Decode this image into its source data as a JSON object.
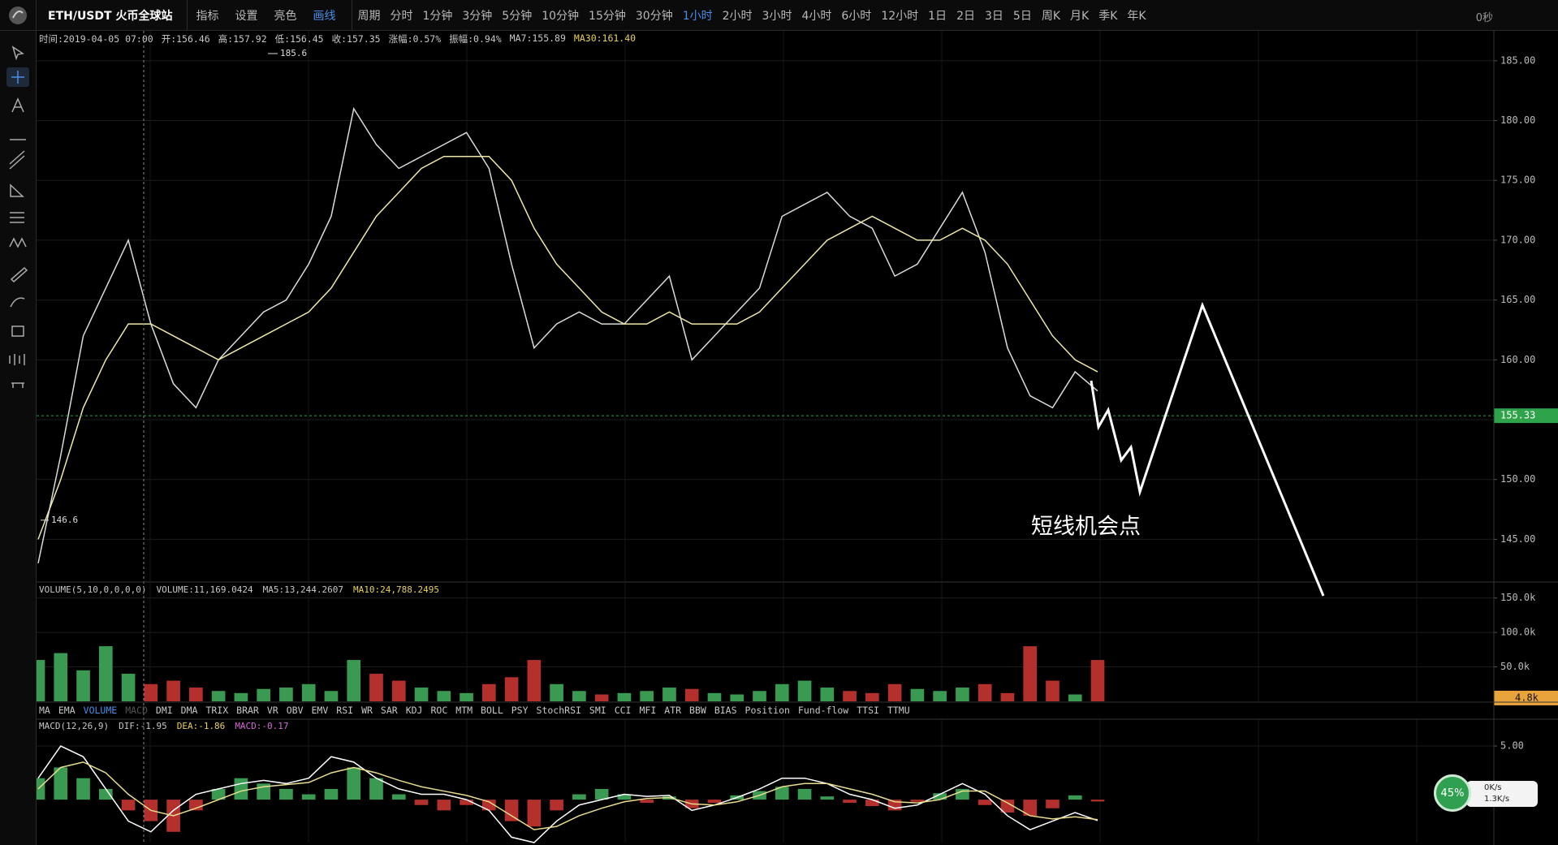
{
  "toolbar": {
    "symbol": "ETH/USDT 火币全球站",
    "tools": [
      "指标",
      "设置",
      "亮色",
      "画线"
    ],
    "active_tool": "画线",
    "period_label": "周期",
    "periods": [
      "分时",
      "1分钟",
      "3分钟",
      "5分钟",
      "10分钟",
      "15分钟",
      "30分钟",
      "1小时",
      "2小时",
      "3小时",
      "4小时",
      "6小时",
      "12小时",
      "1日",
      "2日",
      "3日",
      "5日",
      "周K",
      "月K",
      "季K",
      "年K"
    ],
    "active_period": "1小时",
    "speed": "0秒"
  },
  "info_bar": [
    {
      "text": "时间:2019-04-05 07:00",
      "color": "#c8c8c8"
    },
    {
      "text": "开:156.46",
      "color": "#c8c8c8"
    },
    {
      "text": "高:157.92",
      "color": "#c8c8c8"
    },
    {
      "text": "低:156.45",
      "color": "#c8c8c8"
    },
    {
      "text": "收:157.35",
      "color": "#c8c8c8"
    },
    {
      "text": "涨幅:0.57%",
      "color": "#c8c8c8"
    },
    {
      "text": "振幅:0.94%",
      "color": "#c8c8c8"
    },
    {
      "text": "MA7:155.89",
      "color": "#c8c8c8"
    },
    {
      "text": "MA30:161.40",
      "color": "#e8d25a"
    }
  ],
  "indicator_tabs": [
    "MA",
    "EMA",
    "VOLUME",
    "MACD",
    "DMI",
    "DMA",
    "TRIX",
    "BRAR",
    "VR",
    "OBV",
    "EMV",
    "RSI",
    "WR",
    "SAR",
    "KDJ",
    "ROC",
    "MTM",
    "BOLL",
    "PSY",
    "StochRSI",
    "SMI",
    "CCI",
    "MFI",
    "ATR",
    "BBW",
    "BIAS",
    "Position",
    "Fund-flow",
    "TTSI",
    "TTMU"
  ],
  "active_indicator": "VOLUME",
  "dimmed_indicator": "MACD",
  "widget": {
    "percent": "45%",
    "up": "0K/s",
    "down": "1.3K/s"
  },
  "chart_data": [
    {
      "type": "line",
      "ylim": [
        141.5,
        187.5
      ],
      "yticks": [
        {
          "value": 145,
          "label": "145.00"
        },
        {
          "value": 150,
          "label": "150.00"
        },
        {
          "value": 155,
          "label": "155.00"
        },
        {
          "value": 160,
          "label": "160.00"
        },
        {
          "value": 165,
          "label": "165.00"
        },
        {
          "value": 170,
          "label": "170.00"
        },
        {
          "value": 175,
          "label": "175.00"
        },
        {
          "value": 180,
          "label": "180.00"
        },
        {
          "value": 185,
          "label": "185.00"
        }
      ],
      "grid": true,
      "series": [
        {
          "color": "#d9dcd6",
          "values": [
            143,
            152,
            162,
            166,
            170,
            163,
            158,
            156,
            160,
            162,
            164,
            165,
            168,
            172,
            181,
            178,
            176,
            177,
            178,
            179,
            176,
            168,
            161,
            163,
            164,
            163,
            163,
            165,
            167,
            160,
            162,
            164,
            166,
            172,
            173,
            174,
            172,
            171,
            167,
            168,
            171,
            174,
            169,
            161,
            157,
            156,
            159,
            157.4
          ]
        },
        {
          "color": "#eee8a8",
          "values": [
            145,
            150,
            156,
            160,
            163,
            163,
            162,
            161,
            160,
            161,
            162,
            163,
            164,
            166,
            169,
            172,
            174,
            176,
            177,
            177,
            177,
            175,
            171,
            168,
            166,
            164,
            163,
            163,
            164,
            163,
            163,
            163,
            164,
            166,
            168,
            170,
            171,
            172,
            171,
            170,
            170,
            171,
            170,
            168,
            165,
            162,
            160,
            159
          ]
        }
      ],
      "high_marker": 185.6,
      "low_marker": 146.6,
      "last_price": 155.33,
      "last_price_color": "#2fa34a",
      "annotation": "短线机会点"
    },
    {
      "type": "bar",
      "ylim": [
        0,
        172000
      ],
      "yticks": [
        {
          "value": 50000,
          "label": "50.0k"
        },
        {
          "value": 100000,
          "label": "100.0k"
        },
        {
          "value": 150000,
          "label": "150.0k"
        }
      ],
      "grid": true,
      "values": [
        60000,
        70000,
        45000,
        80000,
        40000,
        25000,
        30000,
        20000,
        15000,
        12000,
        18000,
        20000,
        25000,
        15000,
        60000,
        40000,
        30000,
        20000,
        15000,
        12000,
        25000,
        35000,
        60000,
        25000,
        15000,
        10000,
        12000,
        15000,
        20000,
        18000,
        12000,
        10000,
        15000,
        25000,
        30000,
        20000,
        15000,
        12000,
        25000,
        18000,
        15000,
        20000,
        25000,
        12000,
        80000,
        30000,
        10000,
        60000
      ],
      "up_color": "#3a9a52",
      "down_color": "#b3302c",
      "last_value": {
        "value": 4800,
        "label": "4.8k"
      },
      "last_value_color": "#e8a33a",
      "header": [
        {
          "text": "VOLUME(5,10,0,0,0,0)",
          "color": "#c8c8c8"
        },
        {
          "text": "VOLUME:11,169.0424",
          "color": "#c8c8c8"
        },
        {
          "text": "MA5:13,244.2607",
          "color": "#c8c8c8"
        },
        {
          "text": "MA10:24,788.2495",
          "color": "#e8d25a"
        }
      ]
    },
    {
      "type": "combo",
      "ylim": [
        -4,
        7.5
      ],
      "yticks": [
        {
          "value": 5,
          "label": "5.00"
        }
      ],
      "grid": true,
      "values": [
        2,
        3,
        2,
        1,
        -1,
        -2,
        -3,
        -1,
        1,
        2,
        1.5,
        1,
        0.5,
        1,
        3,
        2,
        0.5,
        -0.5,
        -1,
        -0.5,
        -1,
        -2,
        -2.5,
        -1,
        0.5,
        1,
        0.5,
        -0.3,
        0.3,
        -0.8,
        -0.3,
        0.4,
        0.8,
        1.2,
        1,
        0.3,
        -0.3,
        -0.6,
        -1,
        -0.2,
        0.6,
        1,
        -0.5,
        -1.2,
        -1.5,
        -0.8,
        0.4,
        -0.17
      ],
      "up_color": "#3a9a52",
      "down_color": "#b3302c",
      "series": [
        {
          "color": "#ffffff",
          "values": [
            2,
            5,
            4,
            1,
            -2,
            -3,
            -1,
            0.5,
            1,
            1.5,
            1.8,
            1.5,
            2,
            4,
            3.5,
            2,
            1,
            0.5,
            0.5,
            0,
            -1,
            -3.5,
            -4,
            -2,
            -0.5,
            0,
            0.5,
            0.3,
            0.4,
            -1,
            -0.5,
            0.2,
            1,
            2,
            2,
            1.5,
            0.5,
            0,
            -0.8,
            -0.5,
            0.5,
            1.5,
            0.5,
            -1.5,
            -2.8,
            -2,
            -1.2,
            -1.95
          ]
        },
        {
          "color": "#e8dc8e",
          "values": [
            1,
            3,
            3.5,
            2.5,
            0.5,
            -1,
            -1.5,
            -0.8,
            0,
            0.8,
            1.2,
            1.4,
            1.6,
            2.5,
            3,
            2.5,
            1.8,
            1.2,
            0.8,
            0.4,
            -0.2,
            -1.5,
            -2.8,
            -2.5,
            -1.5,
            -0.8,
            -0.2,
            0.1,
            0.2,
            -0.4,
            -0.5,
            -0.2,
            0.4,
            1.2,
            1.5,
            1.5,
            1,
            0.5,
            -0.2,
            -0.3,
            0,
            0.8,
            0.8,
            -0.3,
            -1.5,
            -1.8,
            -1.6,
            -1.86
          ]
        }
      ],
      "header": [
        {
          "text": "MACD(12,26,9)",
          "color": "#c8c8c8"
        },
        {
          "text": "DIF:-1.95",
          "color": "#c8c8c8"
        },
        {
          "text": "DEA:-1.86",
          "color": "#e8d25a"
        },
        {
          "text": "MACD:-0.17",
          "color": "#d36ad6"
        }
      ]
    }
  ]
}
